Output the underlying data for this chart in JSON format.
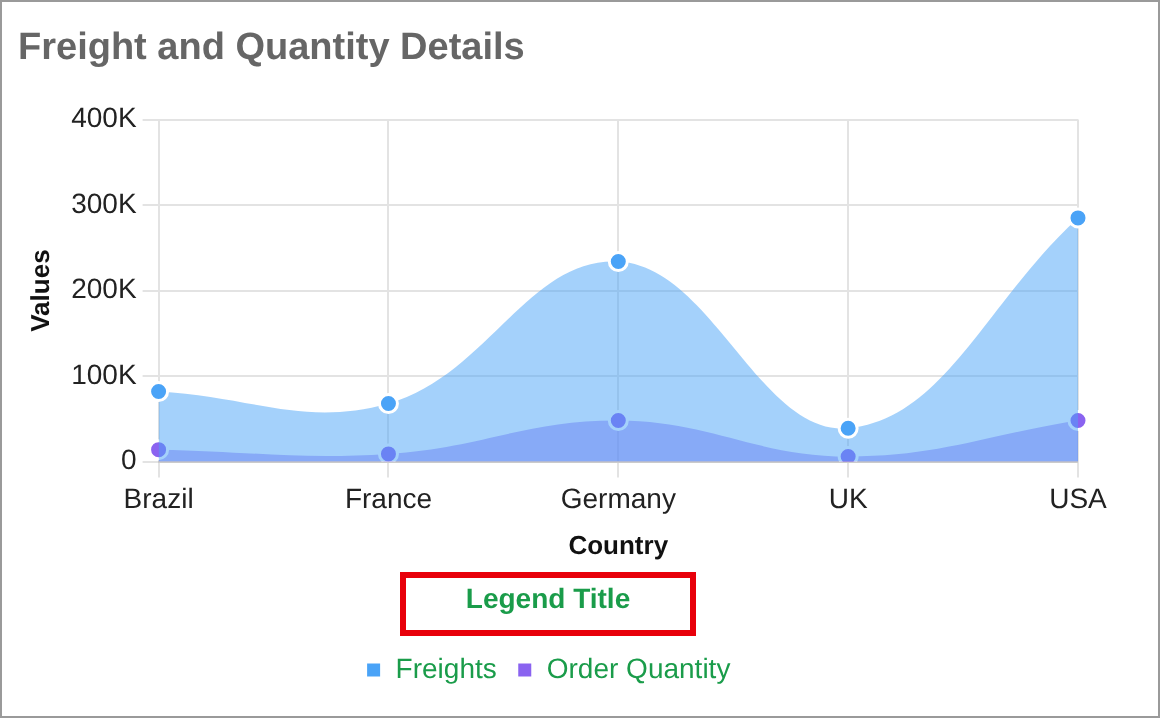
{
  "chart_data": {
    "type": "area",
    "title": "Freight and Quantity Details",
    "xlabel": "Country",
    "ylabel": "Values",
    "legend_title": "Legend Title",
    "categories": [
      "Brazil",
      "France",
      "Germany",
      "UK",
      "USA"
    ],
    "series": [
      {
        "name": "Freights",
        "color": "#4aa3f7",
        "values": [
          82000,
          68000,
          234000,
          39000,
          285000
        ]
      },
      {
        "name": "Order Quantity",
        "color": "#8a63f0",
        "values": [
          14000,
          9000,
          48000,
          6000,
          48000
        ]
      }
    ],
    "ylim": [
      0,
      400000
    ],
    "yticks": [
      {
        "value": 0,
        "label": "0"
      },
      {
        "value": 100000,
        "label": "100K"
      },
      {
        "value": 200000,
        "label": "200K"
      },
      {
        "value": 300000,
        "label": "300K"
      },
      {
        "value": 400000,
        "label": "400K"
      }
    ],
    "grid": true,
    "legend": "bottom",
    "marker": "circle"
  }
}
